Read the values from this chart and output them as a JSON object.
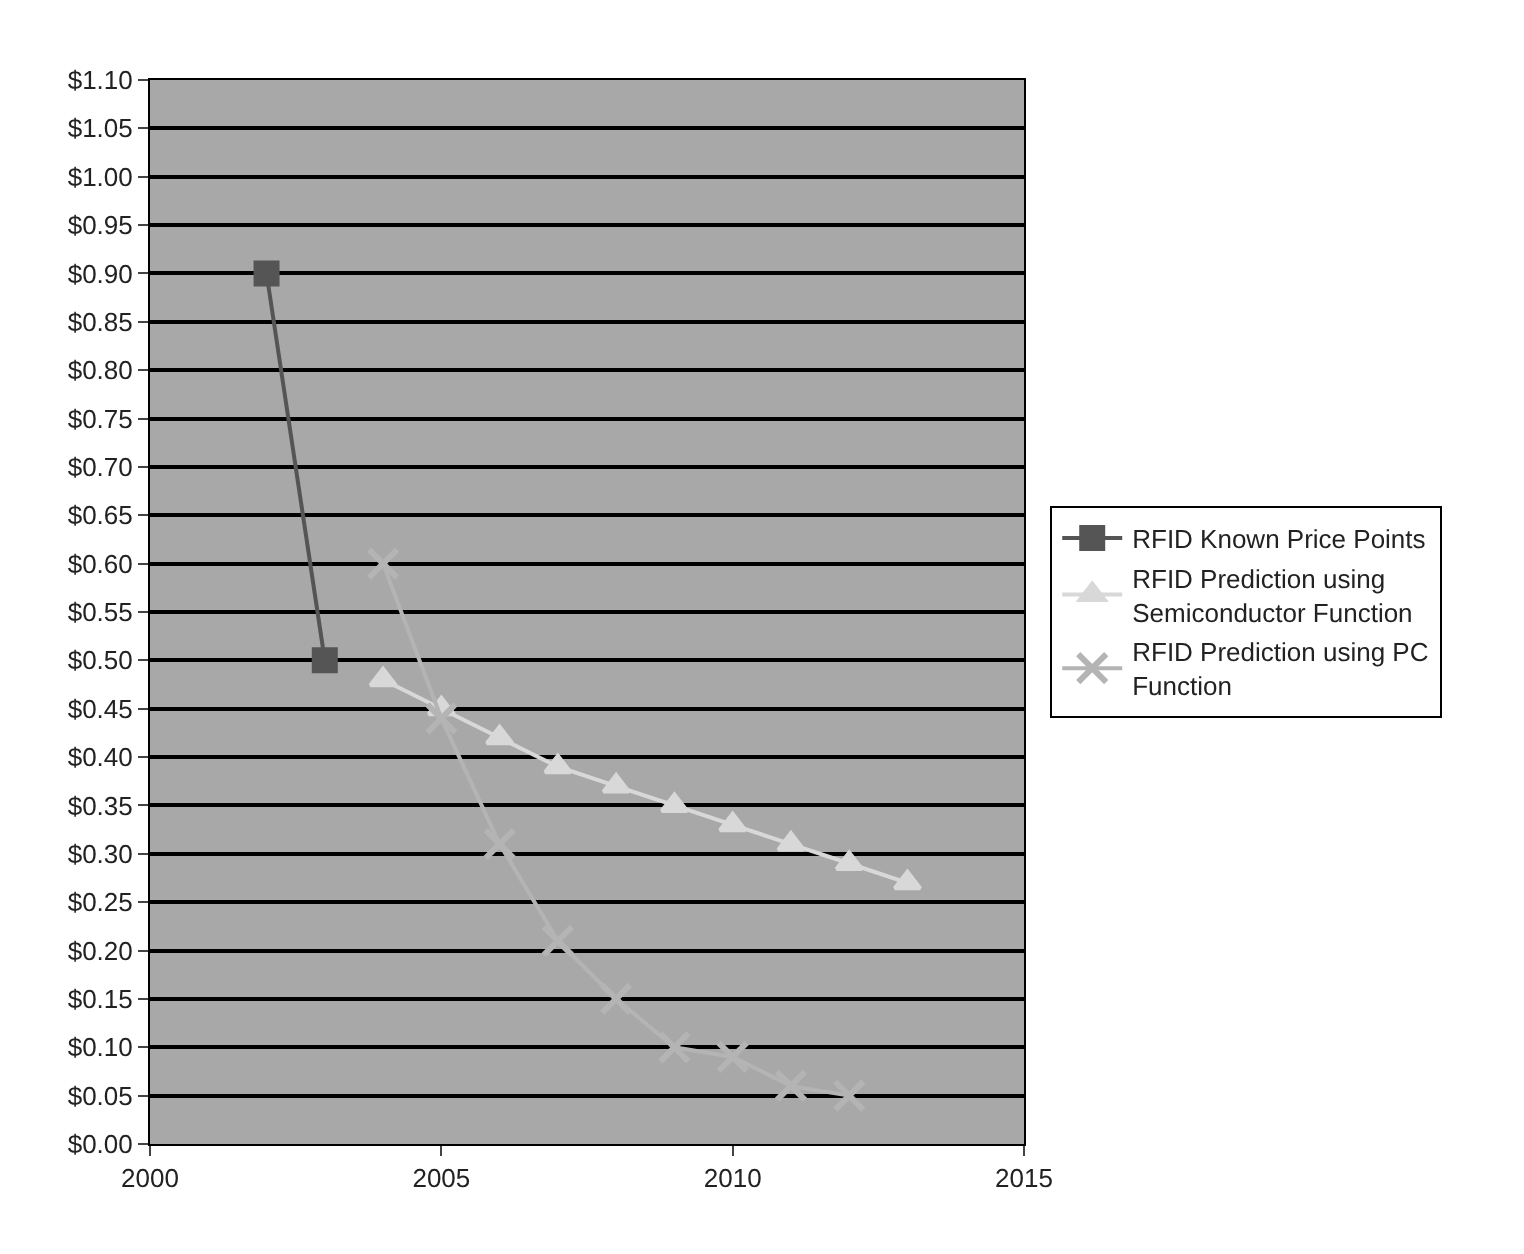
{
  "chart_data": {
    "type": "line",
    "xlim": [
      2000,
      2015
    ],
    "xticks": [
      2000,
      2005,
      2010,
      2015
    ],
    "ylim": [
      0,
      1.1
    ],
    "yticks": [
      {
        "value": 0,
        "label": "$0.00"
      },
      {
        "value": 0.05,
        "label": "$0.05"
      },
      {
        "value": 0.1,
        "label": "$0.10"
      },
      {
        "value": 0.15,
        "label": "$0.15"
      },
      {
        "value": 0.2,
        "label": "$0.20"
      },
      {
        "value": 0.25,
        "label": "$0.25"
      },
      {
        "value": 0.3,
        "label": "$0.30"
      },
      {
        "value": 0.35,
        "label": "$0.35"
      },
      {
        "value": 0.4,
        "label": "$0.40"
      },
      {
        "value": 0.45,
        "label": "$0.45"
      },
      {
        "value": 0.5,
        "label": "$0.50"
      },
      {
        "value": 0.55,
        "label": "$0.55"
      },
      {
        "value": 0.6,
        "label": "$0.60"
      },
      {
        "value": 0.65,
        "label": "$0.65"
      },
      {
        "value": 0.7,
        "label": "$0.70"
      },
      {
        "value": 0.75,
        "label": "$0.75"
      },
      {
        "value": 0.8,
        "label": "$0.80"
      },
      {
        "value": 0.85,
        "label": "$0.85"
      },
      {
        "value": 0.9,
        "label": "$0.90"
      },
      {
        "value": 0.95,
        "label": "$0.95"
      },
      {
        "value": 1.0,
        "label": "$1.00"
      },
      {
        "value": 1.05,
        "label": "$1.05"
      },
      {
        "value": 1.1,
        "label": "$1.10"
      }
    ],
    "grid": "y",
    "legend": "right",
    "series": [
      {
        "name": "RFID Known Price Points",
        "color": "#555555",
        "marker": "square",
        "x": [
          2002,
          2003
        ],
        "values": [
          0.9,
          0.5
        ]
      },
      {
        "name": "RFID Prediction using Semiconductor Function",
        "color": "#d8d8d8",
        "marker": "triangle",
        "x": [
          2004,
          2005,
          2006,
          2007,
          2008,
          2009,
          2010,
          2011,
          2012,
          2013
        ],
        "values": [
          0.48,
          0.45,
          0.42,
          0.39,
          0.37,
          0.35,
          0.33,
          0.31,
          0.29,
          0.27
        ]
      },
      {
        "name": "RFID Prediction using PC Function",
        "color": "#b4b4b4",
        "marker": "cross",
        "x": [
          2004,
          2005,
          2006,
          2007,
          2008,
          2009,
          2010,
          2011,
          2012
        ],
        "values": [
          0.6,
          0.44,
          0.31,
          0.21,
          0.15,
          0.1,
          0.09,
          0.06,
          0.05
        ]
      }
    ]
  }
}
